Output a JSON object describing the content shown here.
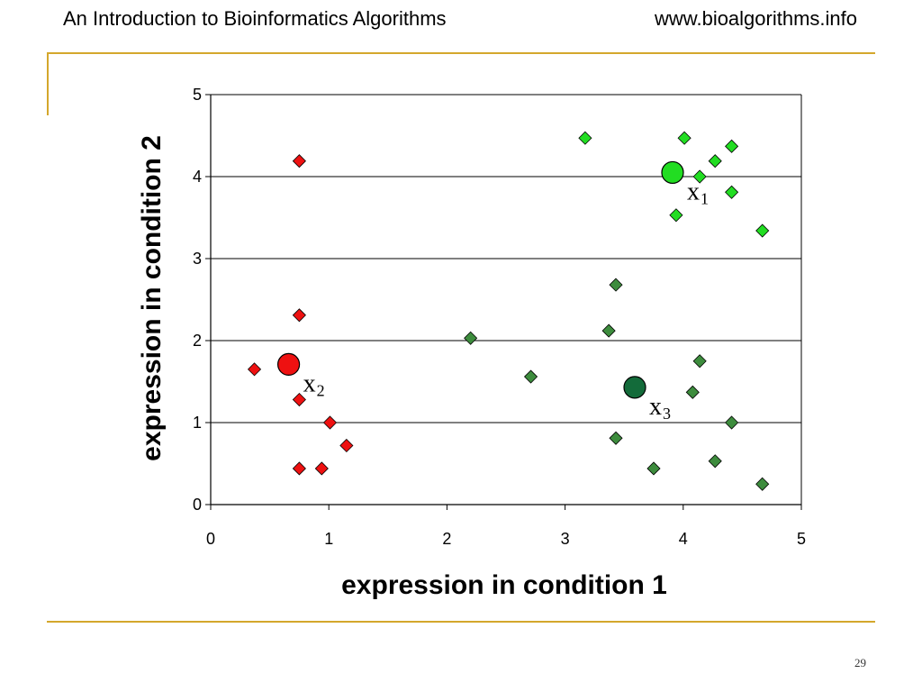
{
  "header": {
    "title": "An Introduction to Bioinformatics Algorithms",
    "website": "www.bioalgorithms.info"
  },
  "footer": {
    "page_number": "29"
  },
  "colors": {
    "cluster1": "#22dd22",
    "cluster2": "#ee1111",
    "cluster3": "#3d8c3d",
    "centroid3": "#136b3a",
    "accent_rule": "#d4a72c"
  },
  "chart_data": {
    "type": "scatter",
    "xlabel": "expression in condition 1",
    "ylabel": "expression in condition 2",
    "xlim": [
      0,
      5
    ],
    "ylim": [
      0,
      5
    ],
    "xticks": [
      "0",
      "1",
      "2",
      "3",
      "4",
      "5"
    ],
    "yticks": [
      "0",
      "1",
      "2",
      "3",
      "4",
      "5"
    ],
    "grid": "horizontal",
    "series": [
      {
        "color": "#22dd22",
        "marker": "diamond",
        "points": [
          [
            3.17,
            4.47
          ],
          [
            4.01,
            4.47
          ],
          [
            4.41,
            4.37
          ],
          [
            4.27,
            4.19
          ],
          [
            4.14,
            4.0
          ],
          [
            4.41,
            3.81
          ],
          [
            3.94,
            3.53
          ],
          [
            4.67,
            3.34
          ]
        ]
      },
      {
        "color": "#ee1111",
        "marker": "diamond",
        "points": [
          [
            0.75,
            4.19
          ],
          [
            0.75,
            2.31
          ],
          [
            0.37,
            1.65
          ],
          [
            0.75,
            1.28
          ],
          [
            1.01,
            1.0
          ],
          [
            1.15,
            0.72
          ],
          [
            0.75,
            0.44
          ],
          [
            0.94,
            0.44
          ]
        ]
      },
      {
        "color": "#3d8c3d",
        "marker": "diamond",
        "points": [
          [
            3.43,
            2.68
          ],
          [
            3.37,
            2.12
          ],
          [
            2.2,
            2.03
          ],
          [
            4.14,
            1.75
          ],
          [
            2.71,
            1.56
          ],
          [
            4.08,
            1.37
          ],
          [
            4.41,
            1.0
          ],
          [
            3.43,
            0.81
          ],
          [
            3.75,
            0.44
          ],
          [
            4.27,
            0.53
          ],
          [
            4.67,
            0.25
          ]
        ]
      }
    ],
    "centroids": [
      {
        "label": "x",
        "sub": "1",
        "x": 3.91,
        "y": 4.05,
        "color": "#22dd22"
      },
      {
        "label": "x",
        "sub": "2",
        "x": 0.66,
        "y": 1.71,
        "color": "#ee1111"
      },
      {
        "label": "x",
        "sub": "3",
        "x": 3.59,
        "y": 1.43,
        "color": "#136b3a"
      }
    ]
  }
}
